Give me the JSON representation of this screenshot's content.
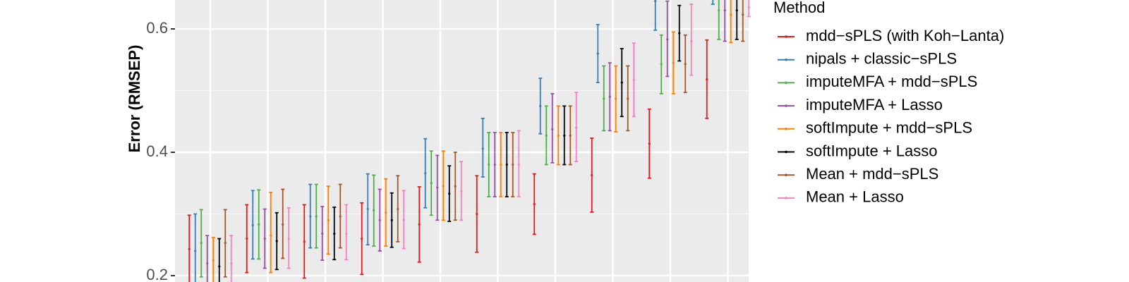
{
  "chart_data": {
    "type": "errorbar",
    "ylabel": "Error (RMSEP)",
    "ylim": [
      0.2,
      0.66
    ],
    "yticks": [
      0.2,
      0.4,
      0.6
    ],
    "ytick_labels": [
      "0.2",
      "0.4",
      "0.6"
    ],
    "grid": true,
    "legend": {
      "title": "Method",
      "placement": "right"
    },
    "groups": 10,
    "series": [
      {
        "name": "mdd−sPLS (with Koh−Lanta)",
        "color": "#e41a1c",
        "values": [
          [
            0.243,
            0.187,
            0.298
          ],
          [
            0.26,
            0.205,
            0.315
          ],
          [
            0.255,
            0.196,
            0.315
          ],
          [
            0.26,
            0.202,
            0.318
          ],
          [
            0.283,
            0.222,
            0.344
          ],
          [
            0.3,
            0.238,
            0.362
          ],
          [
            0.316,
            0.267,
            0.365
          ],
          [
            0.363,
            0.303,
            0.423
          ],
          [
            0.414,
            0.358,
            0.47
          ],
          [
            0.518,
            0.455,
            0.582
          ]
        ]
      },
      {
        "name": "nipals + classic−sPLS",
        "color": "#377eb8",
        "values": [
          [
            0.24,
            0.18,
            0.3
          ],
          [
            0.282,
            0.227,
            0.338
          ],
          [
            0.296,
            0.245,
            0.348
          ],
          [
            0.308,
            0.25,
            0.365
          ],
          [
            0.366,
            0.31,
            0.422
          ],
          [
            0.406,
            0.36,
            0.455
          ],
          [
            0.475,
            0.43,
            0.52
          ],
          [
            0.56,
            0.513,
            0.607
          ],
          [
            0.645,
            0.598,
            0.66
          ],
          [
            0.66,
            0.64,
            0.66
          ]
        ]
      },
      {
        "name": "imputeMFA + mdd−sPLS",
        "color": "#4daf4a",
        "values": [
          [
            0.253,
            0.198,
            0.307
          ],
          [
            0.283,
            0.227,
            0.339
          ],
          [
            0.296,
            0.245,
            0.348
          ],
          [
            0.306,
            0.248,
            0.363
          ],
          [
            0.35,
            0.298,
            0.402
          ],
          [
            0.38,
            0.328,
            0.432
          ],
          [
            0.427,
            0.38,
            0.475
          ],
          [
            0.487,
            0.435,
            0.54
          ],
          [
            0.543,
            0.495,
            0.59
          ],
          [
            0.63,
            0.583,
            0.66
          ]
        ]
      },
      {
        "name": "imputeMFA + Lasso",
        "color": "#984ea3",
        "values": [
          [
            0.22,
            0.175,
            0.265
          ],
          [
            0.26,
            0.212,
            0.308
          ],
          [
            0.268,
            0.225,
            0.312
          ],
          [
            0.29,
            0.24,
            0.34
          ],
          [
            0.343,
            0.29,
            0.395
          ],
          [
            0.38,
            0.328,
            0.432
          ],
          [
            0.437,
            0.383,
            0.495
          ],
          [
            0.49,
            0.435,
            0.545
          ],
          [
            0.583,
            0.523,
            0.645
          ],
          [
            0.63,
            0.58,
            0.66
          ]
        ]
      },
      {
        "name": "softImpute + mdd−sPLS",
        "color": "#ff7f00",
        "values": [
          [
            0.225,
            0.18,
            0.262
          ],
          [
            0.265,
            0.205,
            0.335
          ],
          [
            0.29,
            0.235,
            0.345
          ],
          [
            0.302,
            0.248,
            0.357
          ],
          [
            0.345,
            0.29,
            0.402
          ],
          [
            0.38,
            0.328,
            0.432
          ],
          [
            0.427,
            0.38,
            0.475
          ],
          [
            0.487,
            0.433,
            0.54
          ],
          [
            0.545,
            0.495,
            0.595
          ],
          [
            0.623,
            0.578,
            0.66
          ]
        ]
      },
      {
        "name": "softImpute + Lasso",
        "color": "#000000",
        "values": [
          [
            0.215,
            0.17,
            0.26
          ],
          [
            0.256,
            0.21,
            0.302
          ],
          [
            0.268,
            0.226,
            0.311
          ],
          [
            0.29,
            0.246,
            0.334
          ],
          [
            0.333,
            0.288,
            0.378
          ],
          [
            0.38,
            0.328,
            0.432
          ],
          [
            0.427,
            0.38,
            0.475
          ],
          [
            0.513,
            0.458,
            0.568
          ],
          [
            0.593,
            0.548,
            0.638
          ],
          [
            0.63,
            0.583,
            0.66
          ]
        ]
      },
      {
        "name": "Mean + mdd−sPLS",
        "color": "#a65628",
        "values": [
          [
            0.253,
            0.198,
            0.307
          ],
          [
            0.283,
            0.228,
            0.34
          ],
          [
            0.296,
            0.245,
            0.348
          ],
          [
            0.308,
            0.255,
            0.362
          ],
          [
            0.345,
            0.29,
            0.4
          ],
          [
            0.38,
            0.328,
            0.432
          ],
          [
            0.427,
            0.38,
            0.475
          ],
          [
            0.487,
            0.435,
            0.54
          ],
          [
            0.543,
            0.497,
            0.59
          ],
          [
            0.623,
            0.58,
            0.66
          ]
        ]
      },
      {
        "name": "Mean + Lasso",
        "color": "#f781bf",
        "values": [
          [
            0.22,
            0.17,
            0.265
          ],
          [
            0.26,
            0.212,
            0.31
          ],
          [
            0.268,
            0.226,
            0.315
          ],
          [
            0.29,
            0.244,
            0.338
          ],
          [
            0.337,
            0.29,
            0.385
          ],
          [
            0.38,
            0.328,
            0.435
          ],
          [
            0.44,
            0.385,
            0.497
          ],
          [
            0.517,
            0.458,
            0.577
          ],
          [
            0.58,
            0.525,
            0.64
          ],
          [
            0.635,
            0.62,
            0.66
          ]
        ]
      }
    ]
  }
}
